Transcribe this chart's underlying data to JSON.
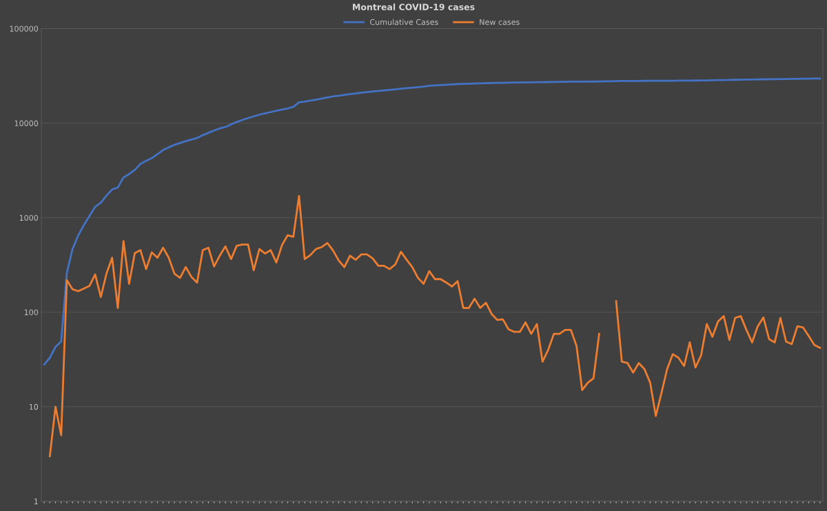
{
  "chart_data": {
    "type": "line",
    "title": "Montreal COVID-19 cases",
    "categories": [
      null,
      null,
      null,
      null,
      null,
      null,
      null,
      null,
      null,
      null,
      null,
      null,
      null,
      null,
      null,
      null,
      null,
      null,
      null,
      null,
      null,
      null,
      null,
      null,
      null,
      null,
      null,
      null,
      null,
      null,
      null,
      null,
      null,
      null,
      null,
      null,
      null,
      null,
      null,
      null,
      null,
      null,
      null,
      null,
      null,
      null,
      null,
      null,
      null,
      null,
      null,
      null,
      null,
      null,
      null,
      null,
      null,
      null,
      null,
      null,
      null,
      null,
      null,
      null,
      null,
      null,
      null,
      null,
      null,
      null,
      null,
      null,
      null,
      null,
      null,
      null,
      null,
      null,
      null,
      null,
      null,
      null,
      null,
      null,
      null,
      null,
      null,
      null,
      null,
      null,
      null,
      null,
      null,
      null,
      null,
      null,
      null,
      null,
      null,
      null,
      null,
      null,
      null,
      null,
      null,
      null,
      null,
      null,
      null,
      null,
      null,
      null,
      null,
      null,
      null,
      null,
      null,
      null,
      null,
      null,
      null,
      null,
      null,
      null,
      null,
      null,
      null,
      null,
      null,
      null,
      null,
      null,
      null,
      null,
      null,
      null,
      null,
      null
    ],
    "series": [
      {
        "name": "Cumulative Cases",
        "color": "#4472c4",
        "values": [
          28,
          33,
          43,
          49,
          260,
          466,
          646,
          835,
          1040,
          1306,
          1444,
          1714,
          1990,
          2085,
          2660,
          2890,
          3200,
          3700,
          4000,
          4270,
          4700,
          5200,
          5550,
          5900,
          6170,
          6450,
          6700,
          6970,
          7450,
          7900,
          8350,
          8800,
          9100,
          9700,
          10300,
          10800,
          11300,
          11800,
          12300,
          12700,
          13100,
          13500,
          13900,
          14300,
          14900,
          16600,
          16900,
          17300,
          17700,
          18200,
          18700,
          19200,
          19500,
          19900,
          20300,
          20600,
          21000,
          21300,
          21600,
          21900,
          22200,
          22500,
          22800,
          23100,
          23400,
          23700,
          24000,
          24300,
          24830,
          25050,
          25270,
          25480,
          25670,
          25880,
          25990,
          26100,
          26240,
          26350,
          26480,
          26570,
          26660,
          26740,
          26810,
          26870,
          26930,
          27010,
          27070,
          27140,
          27170,
          27210,
          27270,
          27330,
          27390,
          27460,
          27500,
          27520,
          27530,
          27550,
          27610,
          27680,
          27750,
          27880,
          27910,
          27940,
          27960,
          27990,
          28020,
          28040,
          28040,
          28060,
          28080,
          28120,
          28150,
          28180,
          28230,
          28250,
          28290,
          28360,
          28420,
          28500,
          28590,
          28640,
          28730,
          28820,
          28890,
          28930,
          29000,
          29090,
          29140,
          29190,
          29280,
          29330,
          29370,
          29440,
          29510,
          29570,
          29610,
          29650
        ]
      },
      {
        "name": "New cases",
        "color": "#ed7d31",
        "values": [
          null,
          3,
          10,
          5,
          218,
          175,
          167,
          178,
          190,
          251,
          145,
          256,
          377,
          111,
          566,
          200,
          423,
          453,
          286,
          430,
          377,
          481,
          377,
          256,
          231,
          301,
          236,
          206,
          453,
          481,
          305,
          396,
          497,
          365,
          505,
          520,
          520,
          278,
          466,
          418,
          453,
          336,
          513,
          653,
          628,
          1700,
          365,
          402,
          466,
          489,
          540,
          451,
          353,
          300,
          396,
          359,
          409,
          409,
          371,
          310,
          310,
          286,
          320,
          436,
          359,
          300,
          231,
          200,
          272,
          224,
          224,
          206,
          187,
          213,
          111,
          111,
          139,
          111,
          126,
          96,
          83,
          84,
          66,
          62,
          62,
          78,
          59,
          75,
          30,
          40,
          59,
          59,
          65,
          65,
          44,
          15,
          18,
          20,
          59,
          null,
          null,
          131,
          30,
          29,
          23,
          29,
          25,
          18,
          8,
          14,
          25,
          36,
          33,
          27,
          48,
          26,
          35,
          75,
          55,
          80,
          91,
          51,
          87,
          91,
          65,
          48,
          71,
          88,
          52,
          48,
          87,
          49,
          46,
          71,
          69,
          56,
          45,
          42
        ]
      }
    ],
    "log": "y",
    "ylim": [
      1,
      100000
    ],
    "yticks": [
      1,
      10,
      100,
      1000,
      10000,
      100000
    ],
    "grid": "y",
    "legend": "top",
    "tick_labels": "y",
    "marker": "none",
    "line_style": "solid"
  }
}
